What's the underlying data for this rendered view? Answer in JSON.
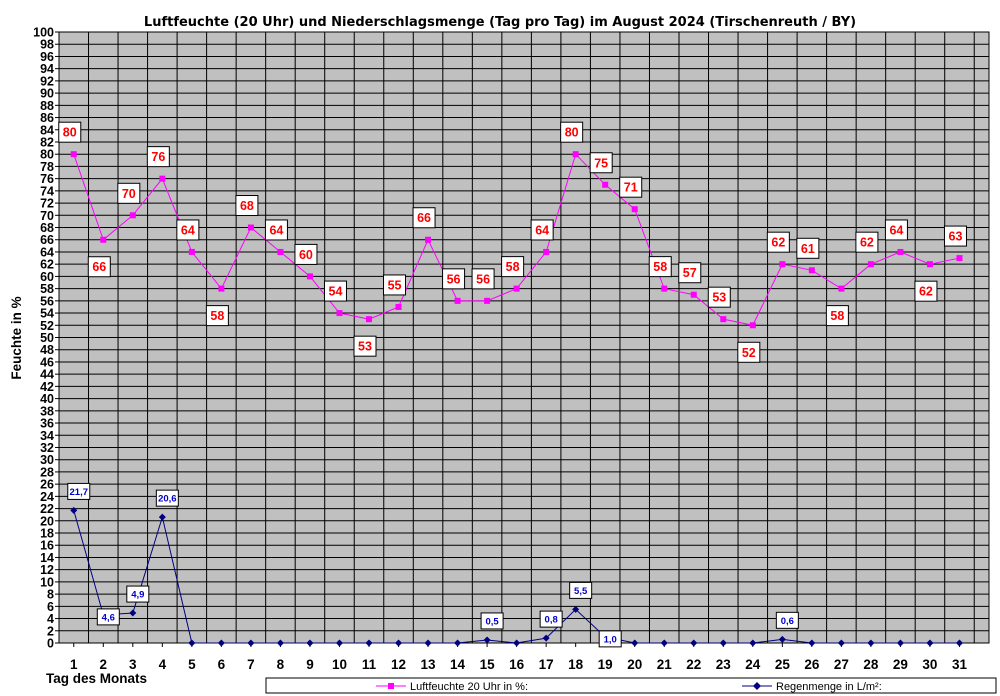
{
  "chart_data": {
    "type": "line",
    "title": "Luftfeuchte (20 Uhr) und Niederschlagsmenge (Tag pro Tag) im August 2024 (Tirschenreuth / BY)",
    "xlabel": "Tag des Monats",
    "ylabel": "Feuchte in %",
    "ylim": [
      0,
      100
    ],
    "ytick_step": 2,
    "grid": true,
    "legend": "bottom",
    "x": [
      "1",
      "2",
      "3",
      "4",
      "5",
      "6",
      "7",
      "8",
      "9",
      "10",
      "11",
      "12",
      "13",
      "14",
      "15",
      "16",
      "17",
      "18",
      "19",
      "20",
      "21",
      "22",
      "23",
      "24",
      "25",
      "26",
      "27",
      "28",
      "29",
      "30",
      "31"
    ],
    "series": [
      {
        "name": "Luftfeuchte 20 Uhr in %:",
        "color": "#ff00ff",
        "label_color": "#ff0000",
        "marker": "square",
        "values": [
          80,
          66,
          70,
          76,
          64,
          58,
          68,
          64,
          60,
          54,
          53,
          55,
          66,
          56,
          56,
          58,
          64,
          80,
          75,
          71,
          58,
          57,
          53,
          52,
          62,
          61,
          58,
          62,
          64,
          62,
          63
        ],
        "labels": [
          "80",
          "66",
          "70",
          "76",
          "64",
          "58",
          "68",
          "64",
          "60",
          "54",
          "53",
          "55",
          "66",
          "56",
          "56",
          "58",
          "64",
          "80",
          "75",
          "71",
          "58",
          "57",
          "53",
          "52",
          "62",
          "61",
          "58",
          "62",
          "64",
          "62",
          "63"
        ]
      },
      {
        "name": "Regenmenge in L/m²:",
        "color": "#000080",
        "label_color": "#0000cc",
        "marker": "diamond",
        "values": [
          21.7,
          4.6,
          4.9,
          20.6,
          0,
          0,
          0,
          0,
          0,
          0,
          0,
          0,
          0,
          0,
          0.5,
          0,
          0.8,
          5.5,
          1.0,
          0,
          0,
          0,
          0,
          0,
          0.6,
          0,
          0,
          0,
          0,
          0,
          0
        ],
        "labels": [
          "21,7",
          "4,6",
          "4,9",
          "20,6",
          "",
          "",
          "",
          "",
          "",
          "",
          "",
          "",
          "",
          "",
          "0,5",
          "",
          "0,8",
          "5,5",
          "1,0",
          "",
          "",
          "",
          "",
          "",
          "0,6",
          "",
          "",
          "",
          "",
          "",
          ""
        ]
      }
    ]
  }
}
